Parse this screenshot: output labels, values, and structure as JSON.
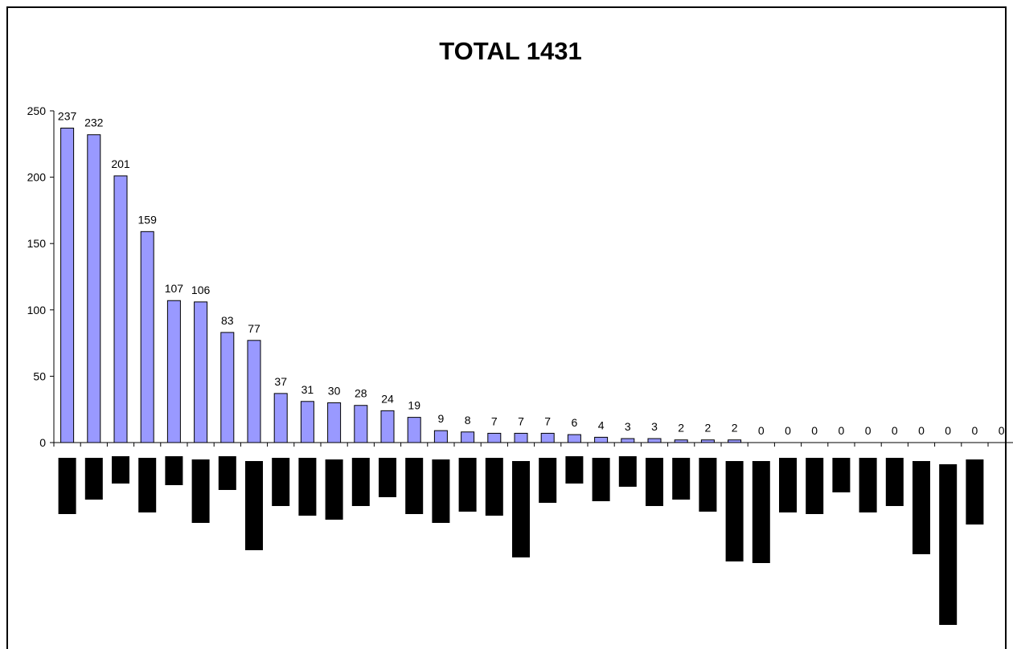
{
  "chart_data": {
    "type": "bar",
    "title": "TOTAL 1431",
    "xlabel": "",
    "ylabel": "",
    "ylim": [
      0,
      250
    ],
    "yticks": [
      "0",
      "50",
      "100",
      "150",
      "200",
      "250"
    ],
    "grid": false,
    "legend": "none",
    "bar_color": "#9999ff",
    "redaction_color": "#000000",
    "values": [
      237,
      232,
      201,
      159,
      107,
      106,
      83,
      77,
      37,
      31,
      30,
      28,
      24,
      19,
      9,
      8,
      7,
      7,
      7,
      6,
      4,
      3,
      3,
      2,
      2,
      2,
      0,
      0,
      0,
      0,
      0,
      0,
      0,
      0,
      0,
      0
    ],
    "data_labels": [
      "237",
      "232",
      "201",
      "159",
      "107",
      "106",
      "83",
      "77",
      "37",
      "31",
      "30",
      "28",
      "24",
      "19",
      "9",
      "8",
      "7",
      "7",
      "7",
      "6",
      "4",
      "3",
      "3",
      "2",
      "2",
      "2",
      "0",
      "0",
      "0",
      "0",
      "0",
      "0",
      "0",
      "0",
      "0",
      "0"
    ]
  }
}
